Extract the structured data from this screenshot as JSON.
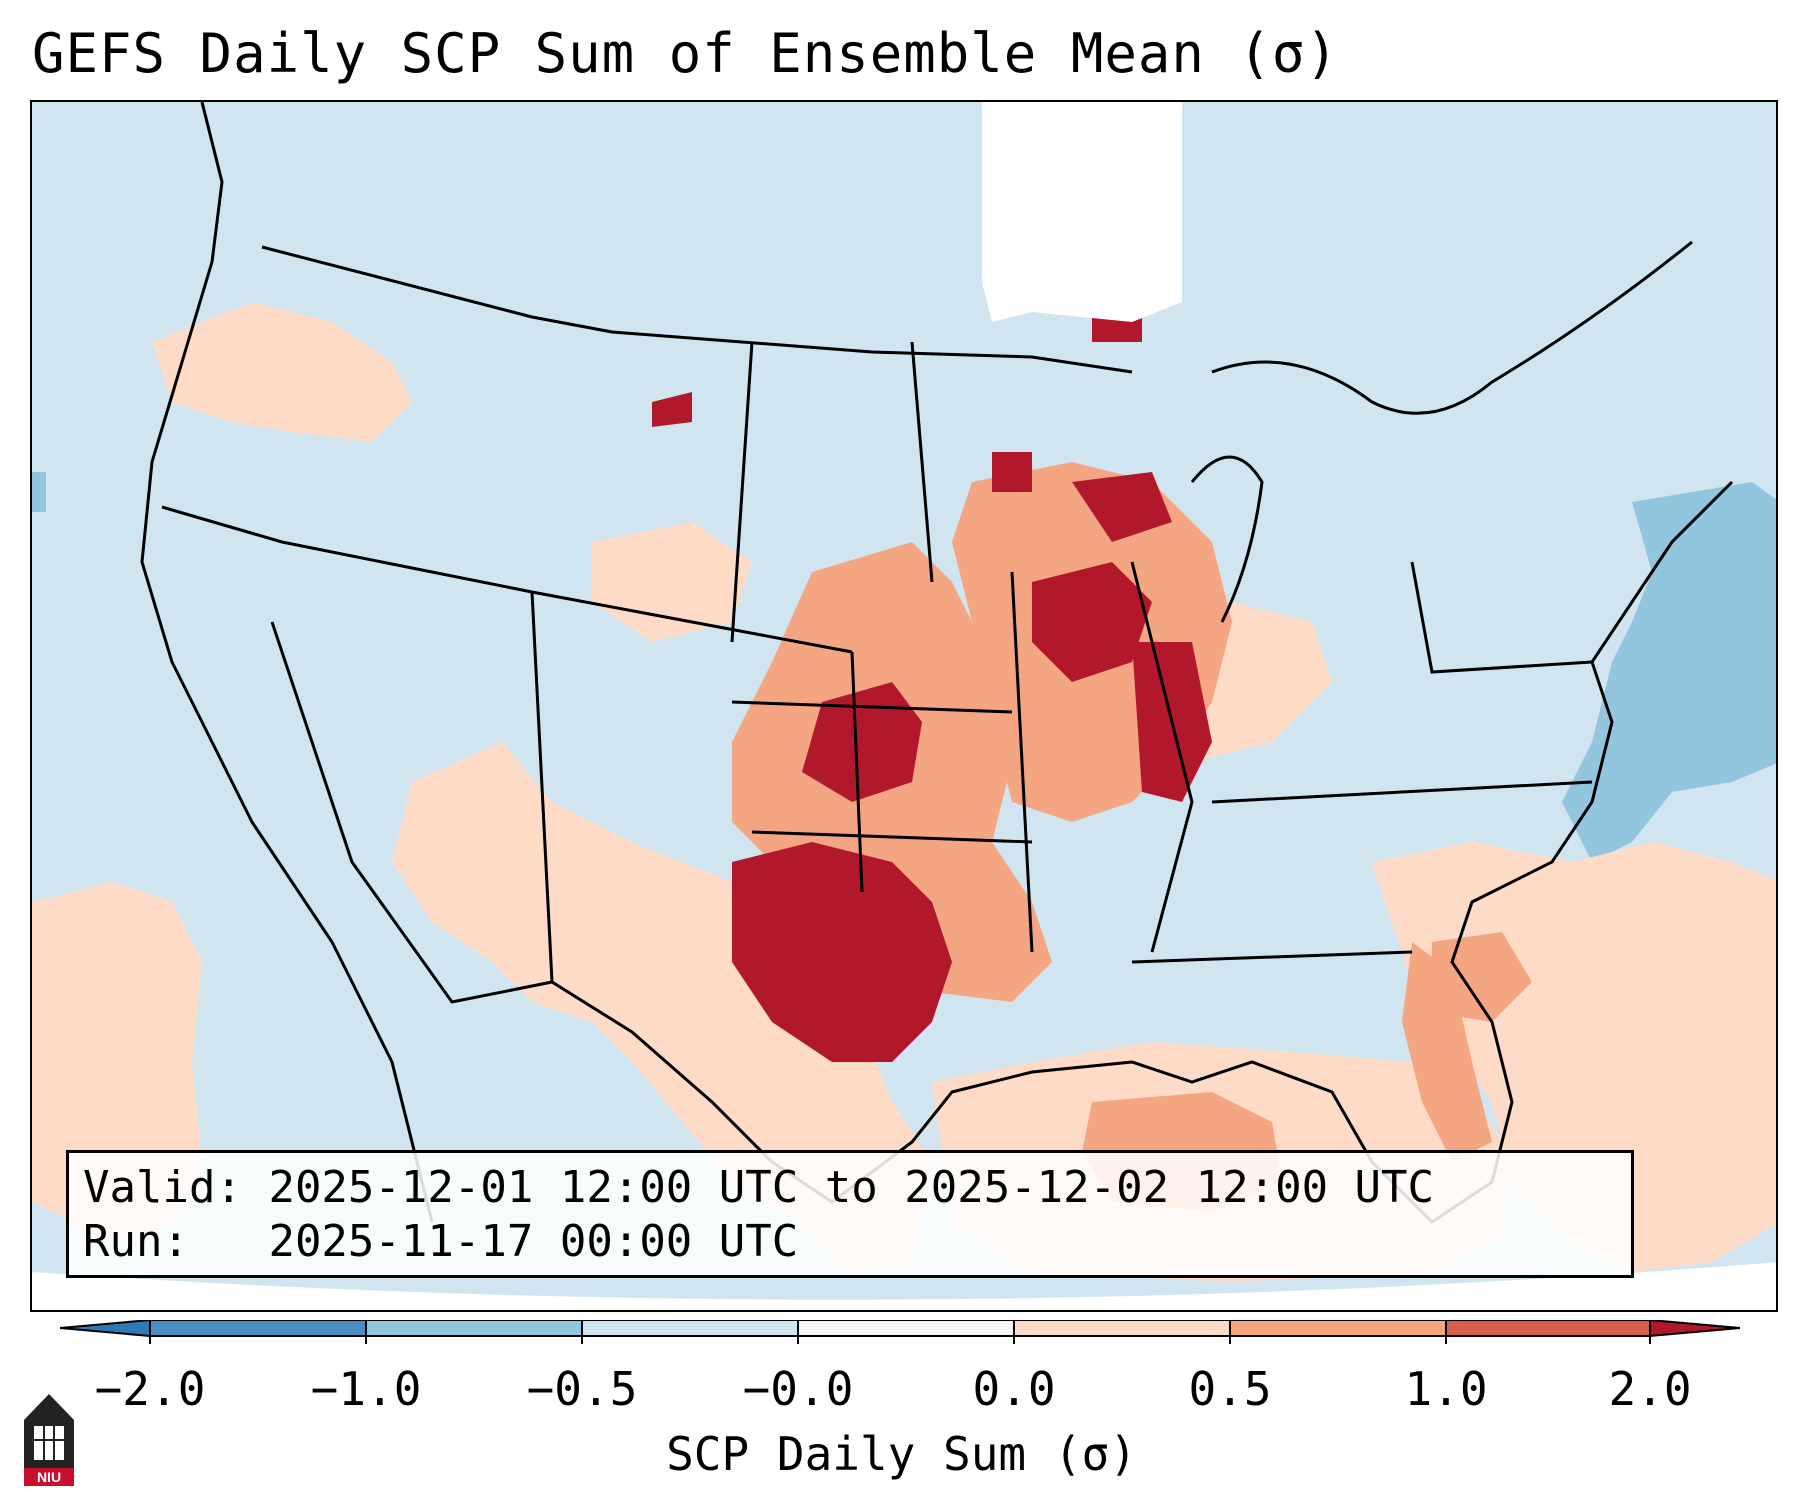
{
  "title": "GEFS Daily SCP Sum of Ensemble Mean (σ)",
  "infobox": {
    "valid_label": "Valid:",
    "valid_value": "2025-12-01 12:00 UTC to 2025-12-02 12:00 UTC",
    "run_label": "Run:",
    "run_value": "2025-11-17 00:00 UTC"
  },
  "colorbar": {
    "label": "SCP Daily Sum (σ)",
    "ticks": [
      "−2.0",
      "−1.0",
      "−0.5",
      "−0.0",
      "0.0",
      "0.5",
      "1.0",
      "2.0"
    ],
    "colors": [
      "#2c7bb6",
      "#4a8fc4",
      "#92c5de",
      "#d1e5f0",
      "#f7f7f7",
      "#fddbc7",
      "#f4a582",
      "#d6604d",
      "#b2182b"
    ]
  },
  "logo": {
    "text": "NIU"
  },
  "map": {
    "background_value_color": "#d1e5f0",
    "land_outline_color": "#000000"
  }
}
